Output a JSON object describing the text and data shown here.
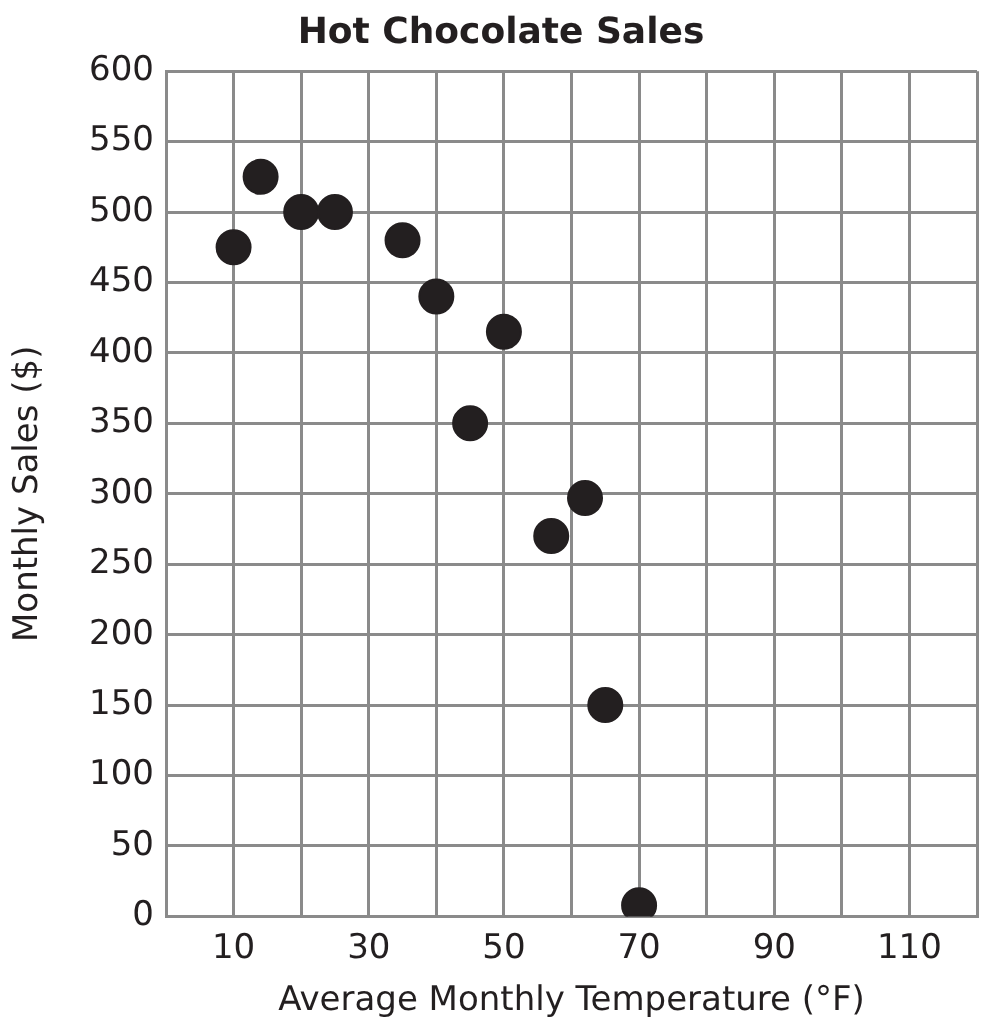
{
  "chart_data": {
    "type": "scatter",
    "title": "Hot Chocolate Sales",
    "xlabel": "Average Monthly Temperature (°F)",
    "ylabel": "Monthly Sales ($)",
    "x": [
      10,
      14,
      20,
      25,
      35,
      40,
      50,
      45,
      62,
      57,
      65,
      70
    ],
    "values": [
      475,
      525,
      500,
      500,
      480,
      440,
      415,
      350,
      297,
      270,
      150,
      8
    ],
    "color": "#231f20",
    "marker": "circle",
    "grid": true,
    "legend": false,
    "xlim": [
      0,
      120
    ],
    "xticks": [
      {
        "value": 0,
        "label": null
      },
      10,
      {
        "value": 20,
        "label": null
      },
      30,
      {
        "value": 40,
        "label": null
      },
      50,
      {
        "value": 60,
        "label": null
      },
      70,
      {
        "value": 80,
        "label": null
      },
      90,
      {
        "value": 100,
        "label": null
      },
      110,
      {
        "value": 120,
        "label": null
      }
    ],
    "ylim": [
      0,
      600
    ],
    "yticks": [
      0,
      50,
      100,
      150,
      200,
      250,
      300,
      350,
      400,
      450,
      500,
      550,
      600
    ]
  }
}
